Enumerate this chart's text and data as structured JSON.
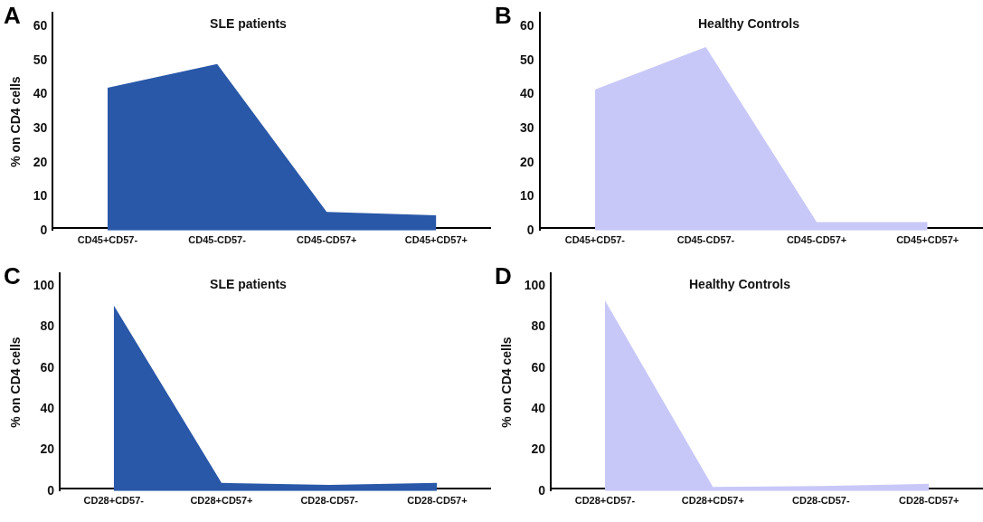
{
  "chart_data": [
    {
      "type": "area",
      "title": "SLE patients",
      "ylabel": "% on CD4 cells",
      "annotations": [
        "A"
      ],
      "categories": [
        "CD45+CD57-",
        "CD45-CD57-",
        "CD45-CD57+",
        "CD45+CD57+"
      ],
      "series": [
        {
          "color": "#2a58a8",
          "values": [
            42,
            49,
            5.5,
            4.5
          ]
        }
      ],
      "ylim": [
        0,
        64
      ],
      "yticks": [
        0,
        10,
        20,
        30,
        40,
        50,
        60
      ],
      "grid": false,
      "legend": false
    },
    {
      "type": "area",
      "title": "Healthy Controls",
      "annotations": [
        "B"
      ],
      "categories": [
        "CD45+CD57-",
        "CD45-CD57-",
        "CD45-CD57+",
        "CD45+CD57+"
      ],
      "series": [
        {
          "color": "#c8c8f8",
          "values": [
            41.5,
            54,
            2.5,
            2.5
          ]
        }
      ],
      "ylim": [
        0,
        64
      ],
      "yticks": [
        0,
        10,
        20,
        30,
        40,
        50,
        60
      ],
      "grid": false,
      "legend": false
    },
    {
      "type": "area",
      "title": "SLE patients",
      "ylabel": "% on CD4 cells",
      "annotations": [
        "C"
      ],
      "categories": [
        "CD28+CD57-",
        "CD28+CD57+",
        "CD28-CD57-",
        "CD28-CD57+"
      ],
      "series": [
        {
          "color": "#2a58a8",
          "values": [
            90.5,
            4,
            3,
            4
          ]
        }
      ],
      "ylim": [
        0,
        106
      ],
      "yticks": [
        0,
        20,
        40,
        60,
        80,
        100
      ],
      "grid": false,
      "legend": false
    },
    {
      "type": "area",
      "title": "Healthy Controls",
      "ylabel": "% on CD4 cells",
      "annotations": [
        "D"
      ],
      "categories": [
        "CD28+CD57-",
        "CD28+CD57+",
        "CD28-CD57-",
        "CD28-CD57+"
      ],
      "series": [
        {
          "color": "#c8c8f8",
          "values": [
            93,
            2,
            2.5,
            3.5
          ]
        }
      ],
      "ylim": [
        0,
        106
      ],
      "yticks": [
        0,
        20,
        40,
        60,
        80,
        100
      ],
      "grid": false,
      "legend": false
    }
  ]
}
